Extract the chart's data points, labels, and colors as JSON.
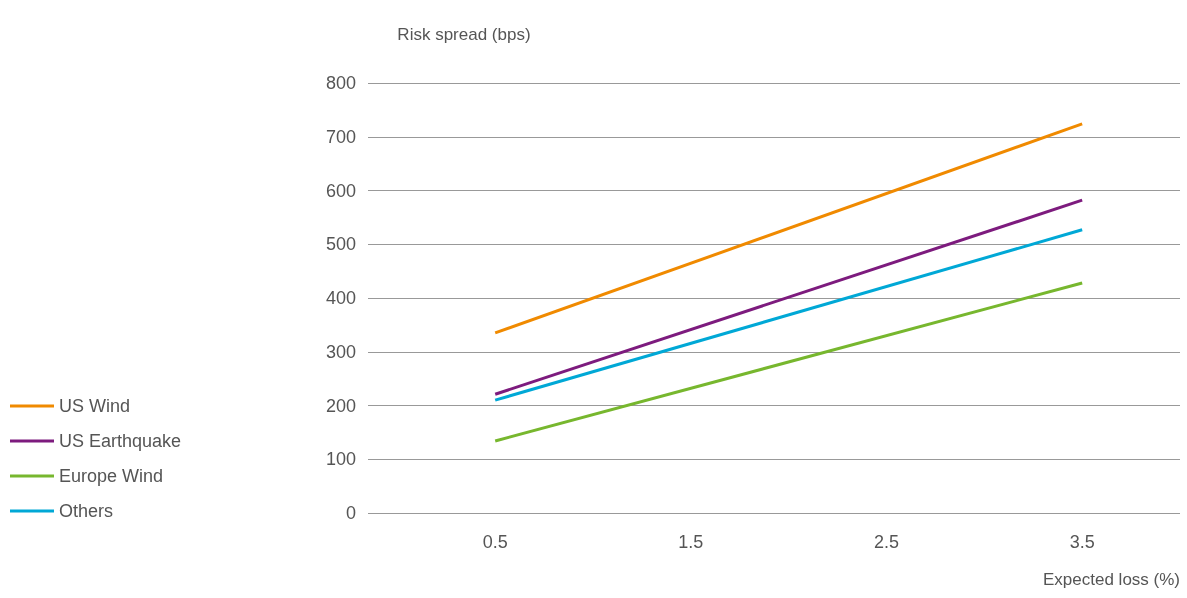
{
  "chart_data": {
    "type": "line",
    "xlabel": "Expected loss (%)",
    "ylabel": "Risk spread (bps)",
    "x": [
      0.5,
      3.5
    ],
    "series": [
      {
        "name": "US Wind",
        "color": "#f08a00",
        "values": [
          335,
          724
        ]
      },
      {
        "name": "US Earthquake",
        "color": "#7d1b7e",
        "values": [
          221,
          582
        ]
      },
      {
        "name": "Europe Wind",
        "color": "#77b72e",
        "values": [
          134,
          428
        ]
      },
      {
        "name": "Others",
        "color": "#00a8d6",
        "values": [
          210,
          527
        ]
      }
    ],
    "xlim": [
      -0.15,
      4
    ],
    "xticks": [
      0.5,
      1.5,
      2.5,
      3.5
    ],
    "ylim": [
      0,
      800
    ],
    "yticks": [
      0,
      100,
      200,
      300,
      400,
      500,
      600,
      700,
      800
    ],
    "grid": "y",
    "legend": "left",
    "marker": "none",
    "line_style": "solid"
  }
}
